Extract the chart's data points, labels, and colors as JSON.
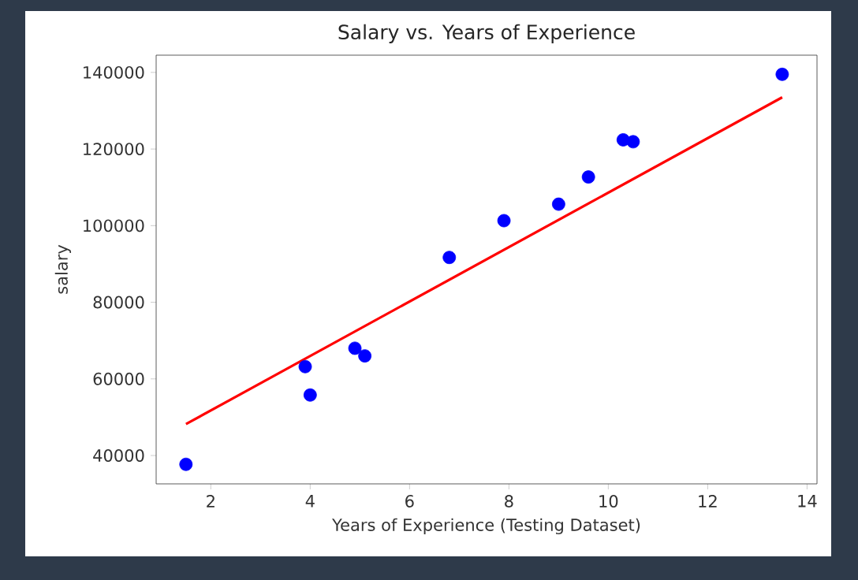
{
  "chart_data": {
    "type": "scatter",
    "title": "Salary vs. Years of Experience",
    "xlabel": "Years of Experience (Testing Dataset)",
    "ylabel": "salary",
    "xlim": [
      0.9,
      14.2
    ],
    "ylim": [
      32600,
      144500
    ],
    "xticks": [
      2,
      4,
      6,
      8,
      10,
      12,
      14
    ],
    "yticks": [
      40000,
      60000,
      80000,
      100000,
      120000,
      140000
    ],
    "grid": false,
    "series": [
      {
        "color": "#0000ff",
        "marker": "circle",
        "x": [
          1.5,
          3.9,
          4.0,
          4.9,
          5.1,
          6.8,
          7.9,
          9.0,
          9.6,
          10.3,
          10.5,
          13.5
        ],
        "values": [
          37700,
          63200,
          55800,
          68000,
          66000,
          91700,
          101300,
          105600,
          112700,
          122400,
          121900,
          139500
        ]
      },
      {
        "type": "line",
        "color": "#ff0000",
        "marker": "none",
        "x": [
          1.5,
          13.5
        ],
        "values": [
          48200,
          133500
        ]
      }
    ]
  }
}
